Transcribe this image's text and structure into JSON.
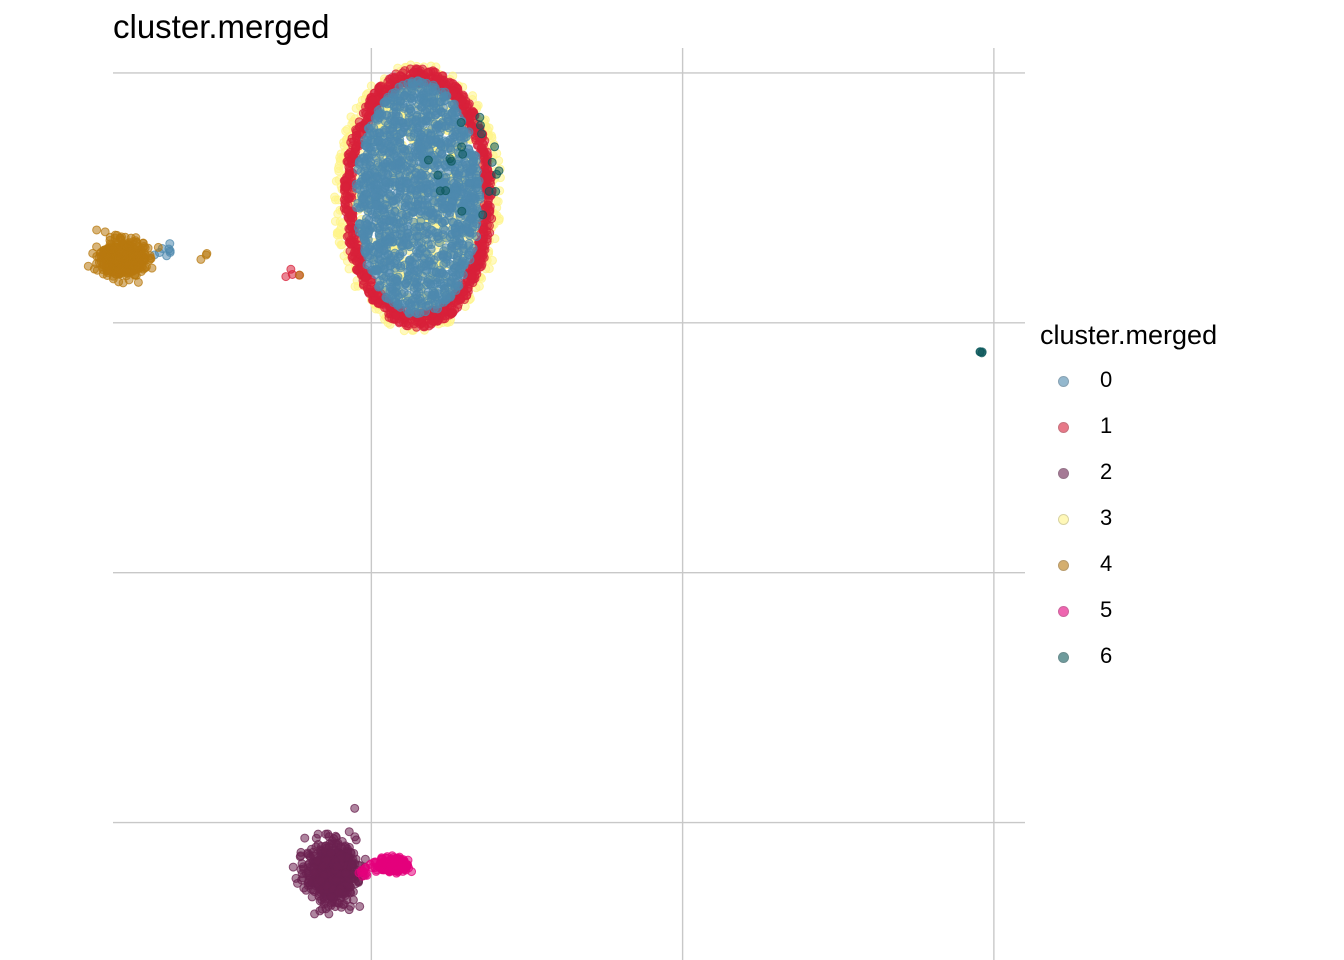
{
  "chart_data": {
    "type": "scatter",
    "title": "cluster.merged",
    "xlabel": "",
    "ylabel": "",
    "grid": true,
    "legend": {
      "title": "cluster.merged",
      "placement": "right",
      "entries": [
        "0",
        "1",
        "2",
        "3",
        "4",
        "5",
        "6"
      ]
    },
    "colors": {
      "0": "#4E89AE",
      "1": "#D8203A",
      "2": "#6B2150",
      "3": "#FFF48A",
      "4": "#B8790F",
      "5": "#E4007C",
      "6": "#0E5A5C"
    },
    "series": [
      {
        "name": "3",
        "clusters": [
          {
            "center": [
              0.15,
              0.5
            ],
            "spread": [
              0.27,
              0.54
            ],
            "n": 1000,
            "shape": "oval"
          }
        ]
      },
      {
        "name": "1",
        "clusters": [
          {
            "center": [
              0.15,
              0.5
            ],
            "spread": [
              0.24,
              0.52
            ],
            "n": 900,
            "shape": "ring"
          },
          {
            "center": [
              -0.25,
              0.2
            ],
            "spread": [
              0.03,
              0.02
            ],
            "n": 4,
            "shape": "blob"
          }
        ]
      },
      {
        "name": "0",
        "clusters": [
          {
            "center": [
              0.15,
              0.5
            ],
            "spread": [
              0.2,
              0.47
            ],
            "n": 1500,
            "shape": "oval"
          },
          {
            "center": [
              -0.67,
              0.28
            ],
            "spread": [
              0.05,
              0.03
            ],
            "n": 8,
            "shape": "blob"
          }
        ]
      },
      {
        "name": "6",
        "clusters": [
          {
            "center": [
              0.3,
              0.65
            ],
            "spread": [
              0.12,
              0.25
            ],
            "n": 20,
            "shape": "oval"
          },
          {
            "center": [
              1.96,
              -0.12
            ],
            "spread": [
              0.005,
              0.005
            ],
            "n": 4,
            "shape": "blob"
          }
        ]
      },
      {
        "name": "4",
        "clusters": [
          {
            "center": [
              -0.8,
              0.26
            ],
            "spread": [
              0.07,
              0.07
            ],
            "n": 500,
            "shape": "blob"
          },
          {
            "center": [
              -0.53,
              0.27
            ],
            "spread": [
              0.03,
              0.02
            ],
            "n": 3,
            "shape": "blob"
          },
          {
            "center": [
              -0.24,
              0.2
            ],
            "spread": [
              0.01,
              0.01
            ],
            "n": 1,
            "shape": "blob"
          }
        ]
      },
      {
        "name": "2",
        "clusters": [
          {
            "center": [
              -0.13,
              -2.2
            ],
            "spread": [
              0.08,
              0.12
            ],
            "n": 600,
            "shape": "blob"
          }
        ]
      },
      {
        "name": "5",
        "clusters": [
          {
            "center": [
              0.07,
              -2.17
            ],
            "spread": [
              0.05,
              0.03
            ],
            "n": 200,
            "shape": "blob"
          },
          {
            "center": [
              -0.03,
              -2.2
            ],
            "spread": [
              0.02,
              0.02
            ],
            "n": 10,
            "shape": "blob"
          }
        ]
      }
    ],
    "xlim": [
      -0.83,
      2.1
    ],
    "ylim": [
      -2.55,
      1.1
    ],
    "x_gridlines": [
      0,
      1,
      2
    ],
    "y_gridlines": [
      1,
      0,
      -1,
      -2
    ]
  }
}
